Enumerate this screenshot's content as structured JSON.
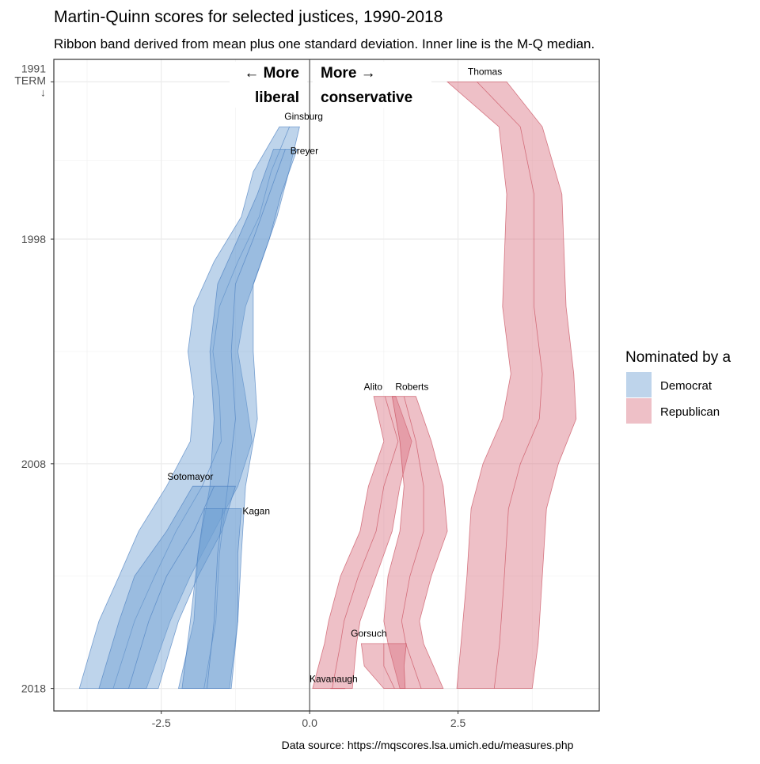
{
  "chart_data": {
    "type": "ribbon",
    "title": "Martin-Quinn scores for selected justices, 1990-2018",
    "subtitle": "Ribbon band derived from mean plus one standard deviation. Inner line is the M-Q median.",
    "caption": "Data source: https://mqscores.lsa.umich.edu/measures.php",
    "annotations": [
      {
        "lines": [
          "← More",
          "liberal"
        ]
      },
      {
        "lines": [
          "More →",
          "conservative"
        ]
      }
    ],
    "legend_title": "Nominated by a",
    "parties": [
      {
        "name": "Democrat",
        "color": "#6f9fd3"
      },
      {
        "name": "Republican",
        "color": "#d97383"
      }
    ],
    "xlim": [
      -4.31,
      4.88
    ],
    "ylim": [
      1990,
      2019
    ],
    "y_reversed": true,
    "xticks": [
      -2.5,
      {
        "value": 0,
        "label": "0.0"
      },
      2.5
    ],
    "yticks": [
      {
        "value": 1991,
        "label": "1991\nTERM\n↓"
      },
      1998,
      2008,
      2018
    ],
    "x_minor_grid": [
      -3.75,
      -1.25,
      1.25,
      3.75
    ],
    "y_minor_grid": [
      1994.5,
      2003,
      2013
    ],
    "grid": true,
    "zero_line": true,
    "series": [
      {
        "name": "Thomas",
        "party": 1,
        "years": [
          1991,
          1993,
          1996,
          2001,
          2004,
          2006,
          2008,
          2010,
          2013,
          2016,
          2018
        ],
        "lower": [
          2.32,
          3.19,
          3.32,
          3.25,
          3.39,
          3.25,
          2.92,
          2.72,
          2.65,
          2.55,
          2.48
        ],
        "median": [
          2.82,
          3.55,
          3.78,
          3.78,
          3.92,
          3.87,
          3.55,
          3.35,
          3.28,
          3.2,
          3.11
        ],
        "upper": [
          3.32,
          3.92,
          4.25,
          4.32,
          4.45,
          4.49,
          4.19,
          3.99,
          3.92,
          3.85,
          3.75
        ]
      },
      {
        "name": "Ginsburg",
        "party": 0,
        "years": [
          1993,
          1995,
          1997,
          1999,
          2001,
          2003,
          2005,
          2007,
          2009,
          2011,
          2013,
          2015,
          2018
        ],
        "lower": [
          -0.51,
          -0.95,
          -1.15,
          -1.61,
          -1.95,
          -2.05,
          -1.95,
          -2.01,
          -2.41,
          -2.88,
          -3.21,
          -3.55,
          -3.88
        ],
        "median": [
          -0.34,
          -0.65,
          -0.85,
          -1.21,
          -1.52,
          -1.63,
          -1.52,
          -1.49,
          -1.81,
          -2.25,
          -2.61,
          -2.95,
          -3.31
        ],
        "upper": [
          -0.17,
          -0.35,
          -0.55,
          -0.81,
          -1.08,
          -1.21,
          -1.08,
          -0.97,
          -1.21,
          -1.61,
          -2.01,
          -2.35,
          -2.75
        ]
      },
      {
        "name": "Breyer",
        "party": 0,
        "years": [
          1994,
          1996,
          1998,
          2000,
          2003,
          2006,
          2009,
          2012,
          2015,
          2018
        ],
        "lower": [
          -0.61,
          -0.88,
          -1.21,
          -1.55,
          -1.68,
          -1.61,
          -1.68,
          -1.88,
          -1.95,
          -2.21
        ],
        "median": [
          -0.41,
          -0.68,
          -0.95,
          -1.25,
          -1.32,
          -1.25,
          -1.38,
          -1.52,
          -1.58,
          -1.78
        ],
        "upper": [
          -0.21,
          -0.48,
          -0.68,
          -0.95,
          -0.95,
          -0.88,
          -1.08,
          -1.15,
          -1.21,
          -1.35
        ]
      },
      {
        "name": "Alito",
        "party": 1,
        "years": [
          2005,
          2007,
          2009,
          2011,
          2013,
          2015,
          2016,
          2018
        ],
        "lower": [
          1.08,
          1.25,
          0.99,
          0.85,
          0.52,
          0.32,
          0.25,
          0.05
        ],
        "median": [
          1.27,
          1.49,
          1.25,
          1.12,
          0.82,
          0.58,
          0.52,
          0.38
        ],
        "upper": [
          1.45,
          1.72,
          1.52,
          1.39,
          1.12,
          0.85,
          0.79,
          0.72
        ]
      },
      {
        "name": "Roberts",
        "party": 1,
        "years": [
          2005,
          2007,
          2009,
          2011,
          2013,
          2015,
          2016,
          2018
        ],
        "lower": [
          1.39,
          1.52,
          1.59,
          1.52,
          1.32,
          1.25,
          1.32,
          1.52
        ],
        "median": [
          1.59,
          1.79,
          1.92,
          1.92,
          1.69,
          1.55,
          1.62,
          1.88
        ],
        "upper": [
          1.79,
          2.05,
          2.25,
          2.32,
          2.05,
          1.85,
          1.92,
          2.25
        ]
      },
      {
        "name": "Sotomayor",
        "party": 0,
        "years": [
          2009,
          2011,
          2013,
          2015,
          2018
        ],
        "lower": [
          -1.97,
          -2.41,
          -2.95,
          -3.21,
          -3.55
        ],
        "median": [
          -1.61,
          -1.95,
          -2.41,
          -2.71,
          -3.05
        ],
        "upper": [
          -1.25,
          -1.48,
          -1.88,
          -2.21,
          -2.55
        ]
      },
      {
        "name": "Kagan",
        "party": 0,
        "years": [
          2010,
          2012,
          2015,
          2018
        ],
        "lower": [
          -1.77,
          -1.88,
          -2.01,
          -2.15
        ],
        "median": [
          -1.46,
          -1.55,
          -1.61,
          -1.73
        ],
        "upper": [
          -1.15,
          -1.21,
          -1.21,
          -1.32
        ]
      },
      {
        "name": "Gorsuch",
        "party": 1,
        "years": [
          2016,
          2017,
          2018
        ],
        "lower": [
          0.87,
          0.92,
          1.25
        ],
        "median": [
          1.25,
          1.25,
          1.43
        ],
        "upper": [
          1.63,
          1.59,
          1.61
        ]
      },
      {
        "name": "Kavanaugh",
        "party": 1,
        "years": [
          2018
        ],
        "lower": [
          0.35
        ],
        "median": [
          0.47
        ],
        "upper": [
          0.6
        ]
      }
    ]
  }
}
